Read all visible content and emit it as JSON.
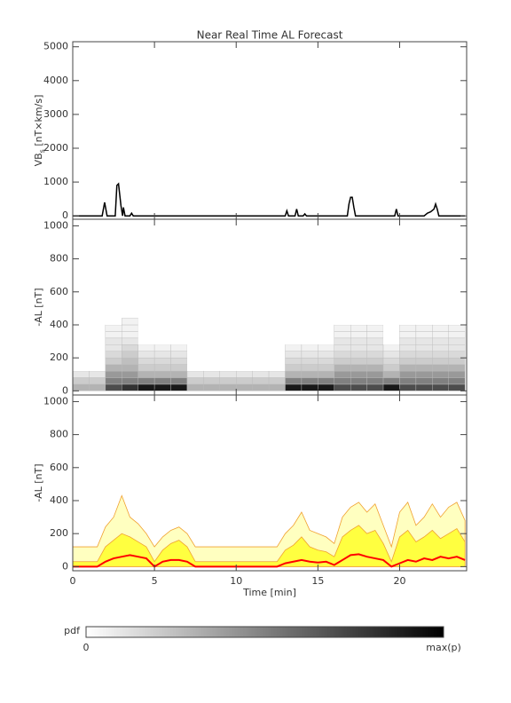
{
  "chart_data": [
    {
      "type": "line",
      "title": "Near Real Time AL Forecast",
      "ylabel": {
        "main": "VB",
        "sub": "s",
        "unit": " [nT×km/s]"
      },
      "color": "#000000",
      "x": [
        0,
        1.8,
        1.95,
        2.1,
        2.6,
        2.7,
        2.8,
        2.95,
        3.05,
        3.1,
        3.2,
        3.5,
        3.6,
        3.7,
        13,
        13.1,
        13.2,
        13.6,
        13.7,
        13.8,
        14.1,
        14.2,
        14.3,
        16.8,
        16.9,
        17,
        17.1,
        17.2,
        17.3,
        19.7,
        19.8,
        19.9,
        21.5,
        21.7,
        21.9,
        22.1,
        22.2,
        22.3,
        22.4,
        24
      ],
      "values": [
        0,
        0,
        400,
        0,
        0,
        900,
        950,
        300,
        0,
        250,
        0,
        0,
        80,
        0,
        0,
        150,
        0,
        0,
        200,
        0,
        0,
        60,
        0,
        0,
        350,
        550,
        550,
        250,
        0,
        0,
        200,
        0,
        0,
        80,
        120,
        200,
        350,
        200,
        0,
        0
      ],
      "xlim": [
        0,
        24.1
      ],
      "xticks": [
        0,
        5,
        10,
        15,
        20
      ],
      "show_xtick_labels": false,
      "ylim": [
        -100,
        5150
      ],
      "yticks": [
        0,
        1000,
        2000,
        3000,
        4000,
        5000
      ]
    },
    {
      "type": "heatmap",
      "ylabel": "-AL [nT]",
      "xbins": [
        0,
        1,
        2,
        3,
        4,
        5,
        6,
        7,
        8,
        9,
        10,
        11,
        12,
        13,
        14,
        15,
        16,
        17,
        18,
        19,
        20,
        21,
        22,
        23,
        24
      ],
      "ybins": [
        0,
        40,
        80,
        120,
        160,
        200,
        240,
        280,
        320,
        360,
        400,
        440
      ],
      "z": [
        [
          0.3,
          0.2,
          0.1,
          0,
          0,
          0,
          0,
          0,
          0,
          0,
          0
        ],
        [
          0.3,
          0.2,
          0.1,
          0,
          0,
          0,
          0,
          0,
          0,
          0,
          0
        ],
        [
          0.7,
          0.5,
          0.4,
          0.3,
          0.2,
          0.15,
          0.1,
          0.1,
          0.05,
          0.05,
          0
        ],
        [
          0.8,
          0.5,
          0.4,
          0.3,
          0.25,
          0.2,
          0.15,
          0.1,
          0.05,
          0.05,
          0.05
        ],
        [
          0.9,
          0.5,
          0.3,
          0.2,
          0.15,
          0.1,
          0.05,
          0,
          0,
          0,
          0
        ],
        [
          0.9,
          0.5,
          0.3,
          0.2,
          0.15,
          0.1,
          0.05,
          0,
          0,
          0,
          0
        ],
        [
          0.9,
          0.5,
          0.3,
          0.2,
          0.15,
          0.1,
          0.05,
          0,
          0,
          0,
          0
        ],
        [
          0.3,
          0.2,
          0.1,
          0,
          0,
          0,
          0,
          0,
          0,
          0,
          0
        ],
        [
          0.3,
          0.2,
          0.1,
          0,
          0,
          0,
          0,
          0,
          0,
          0,
          0
        ],
        [
          0.3,
          0.2,
          0.1,
          0,
          0,
          0,
          0,
          0,
          0,
          0,
          0
        ],
        [
          0.3,
          0.2,
          0.1,
          0,
          0,
          0,
          0,
          0,
          0,
          0,
          0
        ],
        [
          0.3,
          0.2,
          0.1,
          0,
          0,
          0,
          0,
          0,
          0,
          0,
          0
        ],
        [
          0.3,
          0.2,
          0.1,
          0,
          0,
          0,
          0,
          0,
          0,
          0,
          0
        ],
        [
          0.9,
          0.5,
          0.3,
          0.2,
          0.15,
          0.1,
          0.05,
          0,
          0,
          0,
          0
        ],
        [
          0.9,
          0.5,
          0.3,
          0.2,
          0.15,
          0.1,
          0.05,
          0,
          0,
          0,
          0
        ],
        [
          0.9,
          0.5,
          0.3,
          0.2,
          0.15,
          0.1,
          0.05,
          0,
          0,
          0,
          0
        ],
        [
          0.7,
          0.5,
          0.4,
          0.3,
          0.2,
          0.15,
          0.1,
          0.1,
          0.05,
          0.05,
          0
        ],
        [
          0.7,
          0.5,
          0.4,
          0.3,
          0.2,
          0.15,
          0.1,
          0.1,
          0.05,
          0.05,
          0
        ],
        [
          0.7,
          0.5,
          0.4,
          0.3,
          0.2,
          0.15,
          0.1,
          0.1,
          0.05,
          0.05,
          0
        ],
        [
          0.9,
          0.5,
          0.3,
          0.2,
          0.15,
          0.1,
          0.05,
          0,
          0,
          0,
          0
        ],
        [
          0.7,
          0.5,
          0.4,
          0.3,
          0.2,
          0.15,
          0.1,
          0.1,
          0.05,
          0.05,
          0
        ],
        [
          0.7,
          0.5,
          0.4,
          0.3,
          0.2,
          0.15,
          0.1,
          0.1,
          0.05,
          0.05,
          0
        ],
        [
          0.7,
          0.5,
          0.4,
          0.3,
          0.2,
          0.15,
          0.1,
          0.1,
          0.05,
          0.05,
          0
        ],
        [
          0.7,
          0.5,
          0.4,
          0.3,
          0.2,
          0.15,
          0.1,
          0.1,
          0.05,
          0.05,
          0
        ]
      ],
      "xlim": [
        0,
        24.1
      ],
      "xticks": [
        0,
        5,
        10,
        15,
        20
      ],
      "show_xtick_labels": false,
      "ylim": [
        -25,
        1040
      ],
      "yticks": [
        0,
        200,
        400,
        600,
        800,
        1000
      ]
    },
    {
      "type": "area",
      "ylabel": "-AL [nT]",
      "xlabel": "Time [min]",
      "x": [
        0,
        0.5,
        1,
        1.5,
        2,
        2.5,
        3,
        3.5,
        4,
        4.5,
        5,
        5.5,
        6,
        6.5,
        7,
        7.5,
        8,
        8.5,
        9,
        9.5,
        10,
        10.5,
        11,
        11.5,
        12,
        12.5,
        13,
        13.5,
        14,
        14.5,
        15,
        15.5,
        16,
        16.5,
        17,
        17.5,
        18,
        18.5,
        19,
        19.5,
        20,
        20.5,
        21,
        21.5,
        22,
        22.5,
        23,
        23.5,
        24
      ],
      "series": [
        {
          "style": "area",
          "color": "#ffffc0",
          "stroke": "#f0a030",
          "values": [
            120,
            120,
            120,
            120,
            240,
            300,
            430,
            300,
            260,
            200,
            120,
            180,
            220,
            240,
            200,
            120,
            120,
            120,
            120,
            120,
            120,
            120,
            120,
            120,
            120,
            120,
            200,
            250,
            330,
            220,
            200,
            180,
            140,
            300,
            360,
            390,
            330,
            380,
            250,
            120,
            330,
            390,
            250,
            300,
            380,
            300,
            360,
            390,
            280
          ]
        },
        {
          "style": "area",
          "color": "#ffff40",
          "stroke": "#f0a030",
          "values": [
            30,
            30,
            30,
            30,
            120,
            160,
            200,
            180,
            150,
            120,
            30,
            100,
            140,
            160,
            120,
            30,
            30,
            30,
            30,
            30,
            30,
            30,
            30,
            30,
            30,
            30,
            100,
            130,
            180,
            120,
            100,
            90,
            60,
            180,
            220,
            250,
            200,
            220,
            140,
            30,
            180,
            220,
            150,
            180,
            220,
            170,
            200,
            230,
            150
          ]
        },
        {
          "style": "line",
          "color": "#ff0000",
          "values": [
            0,
            0,
            0,
            0,
            30,
            50,
            60,
            70,
            60,
            50,
            0,
            30,
            40,
            40,
            30,
            0,
            0,
            0,
            0,
            0,
            0,
            0,
            0,
            0,
            0,
            0,
            20,
            30,
            40,
            30,
            25,
            30,
            10,
            40,
            70,
            75,
            60,
            50,
            40,
            0,
            20,
            40,
            30,
            50,
            40,
            60,
            50,
            60,
            40
          ]
        }
      ],
      "xlim": [
        0,
        24.1
      ],
      "xticks": [
        0,
        5,
        10,
        15,
        20
      ],
      "show_xtick_labels": true,
      "ylim": [
        -25,
        1040
      ],
      "yticks": [
        0,
        200,
        400,
        600,
        800,
        1000
      ]
    }
  ],
  "colorbar": {
    "label": "pdf",
    "min_label": "0",
    "max_label": "max(p)"
  }
}
